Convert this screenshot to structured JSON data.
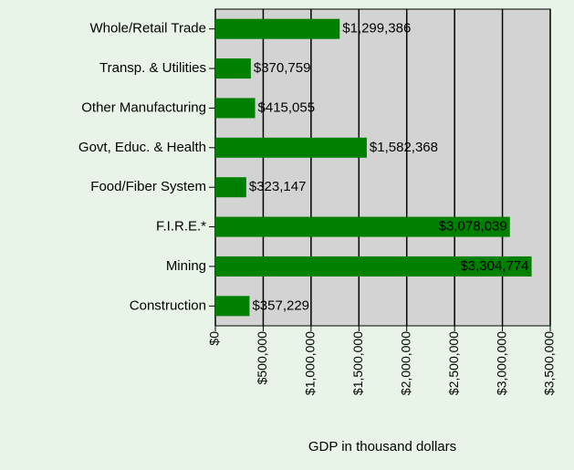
{
  "chart_data": {
    "type": "barh",
    "categories": [
      "Whole/Retail Trade",
      "Transp. & Utilities",
      "Other Manufacturing",
      "Govt, Educ. & Health",
      "Food/Fiber System",
      "F.I.R.E.*",
      "Mining",
      "Construction"
    ],
    "values": [
      1299386,
      370759,
      415055,
      1582368,
      323147,
      3078039,
      3304774,
      357229
    ],
    "value_labels": [
      "$1,299,386",
      "$370,759",
      "$415,055",
      "$1,582,368",
      "$323,147",
      "$3,078,039",
      "$3,304,774",
      "$357,229"
    ],
    "color": "#008000",
    "xlabel": "GDP in thousand dollars",
    "xlim": [
      0,
      3500000
    ],
    "xticks": [
      {
        "value": 0,
        "label": "$0"
      },
      {
        "value": 500000,
        "label": "$500,000"
      },
      {
        "value": 1000000,
        "label": "$1,000,000"
      },
      {
        "value": 1500000,
        "label": "$1,500,000"
      },
      {
        "value": 2000000,
        "label": "$2,000,000"
      },
      {
        "value": 2500000,
        "label": "$2,500,000"
      },
      {
        "value": 3000000,
        "label": "$3,000,000"
      },
      {
        "value": 3500000,
        "label": "$3,500,000"
      }
    ],
    "grid": true
  }
}
